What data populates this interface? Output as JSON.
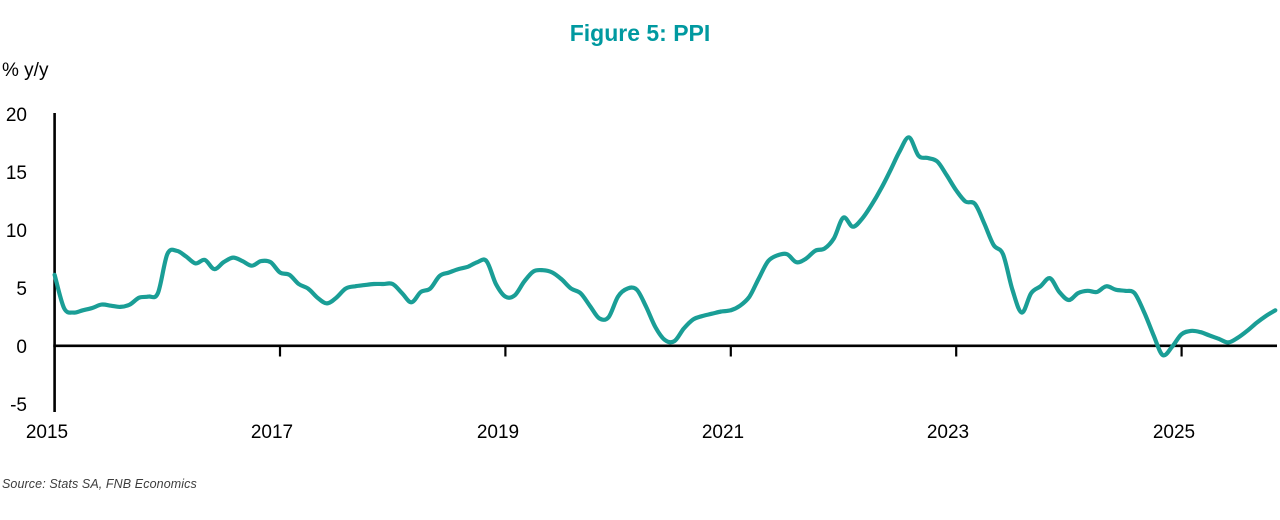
{
  "title": "Figure 5: PPI",
  "y_axis_unit_label": "% y/y",
  "source": "Source: Stats SA, FNB Economics",
  "colors": {
    "title_teal": "#0099A0",
    "line_teal": "#1A9E96",
    "axis_black": "#000000",
    "source_gray": "#3d3d3d"
  },
  "chart_data": {
    "type": "line",
    "title": "Figure 5: PPI",
    "ylabel": "% y/y",
    "xlabel": "",
    "ylim": [
      -5,
      20
    ],
    "y_ticks": [
      "20",
      "15",
      "10",
      "5",
      "0",
      "-5"
    ],
    "x_ticks": [
      "2015",
      "2017",
      "2019",
      "2021",
      "2023",
      "2025"
    ],
    "grid": false,
    "legend": false,
    "baseline": 0,
    "line_color": "#1A9E96",
    "series": [
      {
        "name": "PPI % y/y",
        "frequency": "monthly",
        "start": "2015-01",
        "end": "2025-11",
        "values": [
          6.2,
          3.3,
          2.9,
          3.1,
          3.3,
          3.6,
          3.5,
          3.4,
          3.6,
          4.2,
          4.3,
          4.6,
          8.0,
          8.3,
          7.8,
          7.2,
          7.5,
          6.7,
          7.3,
          7.7,
          7.4,
          7.0,
          7.4,
          7.3,
          6.4,
          6.2,
          5.4,
          5.0,
          4.2,
          3.7,
          4.2,
          5.0,
          5.2,
          5.3,
          5.4,
          5.4,
          5.4,
          4.6,
          3.8,
          4.7,
          5.0,
          6.1,
          6.4,
          6.7,
          6.9,
          7.3,
          7.4,
          5.4,
          4.3,
          4.4,
          5.6,
          6.5,
          6.6,
          6.4,
          5.8,
          5.0,
          4.6,
          3.5,
          2.4,
          2.5,
          4.3,
          5.0,
          4.9,
          3.4,
          1.6,
          0.5,
          0.4,
          1.5,
          2.3,
          2.6,
          2.8,
          3.0,
          3.1,
          3.5,
          4.3,
          5.9,
          7.4,
          7.9,
          8.0,
          7.3,
          7.6,
          8.3,
          8.5,
          9.4,
          11.2,
          10.4,
          11.1,
          12.3,
          13.7,
          15.3,
          17.0,
          18.2,
          16.6,
          16.4,
          16.1,
          14.9,
          13.6,
          12.6,
          12.4,
          10.7,
          8.8,
          8.0,
          4.9,
          2.9,
          4.6,
          5.2,
          5.9,
          4.7,
          4.0,
          4.6,
          4.8,
          4.7,
          5.2,
          4.9,
          4.8,
          4.6,
          3.0,
          1.0,
          -0.8,
          -0.1,
          1.0,
          1.3,
          1.2,
          0.9,
          0.6,
          0.3,
          0.7,
          1.3,
          2.0,
          2.6,
          3.1
        ]
      }
    ]
  }
}
